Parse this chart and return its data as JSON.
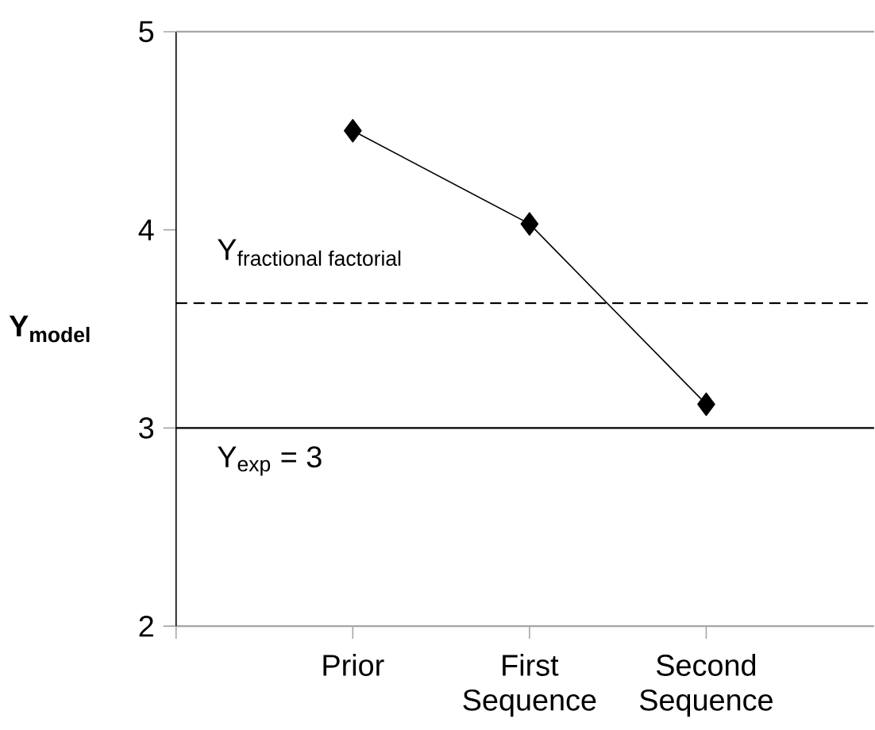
{
  "chart_data": {
    "type": "line",
    "ylabel": "**Y$_{model}$**",
    "categories": [
      "Prior",
      "First Sequence",
      "Second Sequence"
    ],
    "series": [
      {
        "color": "#000000",
        "values": [
          4.5,
          4.03,
          3.12
        ]
      }
    ],
    "ylim": [
      2,
      5
    ],
    "yticks": [
      2,
      3,
      4,
      5
    ],
    "marker": "diamond",
    "line_style": "solid",
    "grid": false,
    "ref_lines": [
      {
        "axis": "y",
        "value": 3.63,
        "label": "\\text{Y}_{\\text{fractional factorial}}",
        "line_style": "dashed",
        "color": "#000000"
      },
      {
        "axis": "y",
        "value": 3,
        "label": "\\text{Y}_{\\text{exp}} \\text{ = 3}",
        "line_style": "solid",
        "color": "#000000"
      }
    ]
  }
}
